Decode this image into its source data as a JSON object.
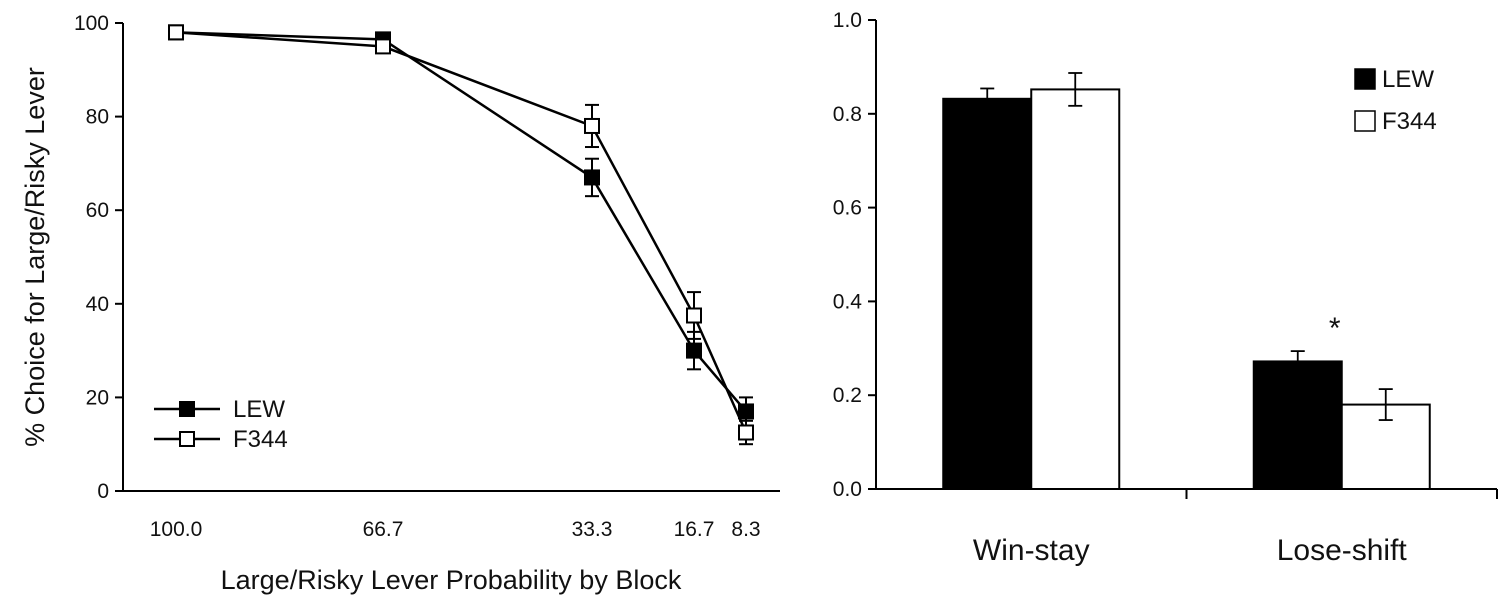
{
  "chart_data": [
    {
      "type": "line",
      "title": "",
      "xlabel": "Large/Risky Lever Probability by Block",
      "ylabel": "% Choice for Large/Risky Lever",
      "x": [
        100.0,
        66.7,
        33.3,
        16.7,
        8.3
      ],
      "x_tick_labels": [
        "100.0",
        "66.7",
        "33.3",
        "16.7",
        "8.3"
      ],
      "ylim": [
        0,
        100
      ],
      "y_ticks": [
        0,
        20,
        40,
        60,
        80,
        100
      ],
      "y_tick_labels": [
        "0",
        "20",
        "40",
        "60",
        "80",
        "100"
      ],
      "grid": false,
      "legend_position": "bottom-left",
      "series": [
        {
          "name": "LEW",
          "marker": "filled-square",
          "color": "#000000",
          "values": [
            98,
            96.5,
            67,
            30,
            17
          ],
          "errors": [
            0.8,
            1.0,
            4,
            4,
            3
          ]
        },
        {
          "name": "F344",
          "marker": "open-square",
          "color": "#000000",
          "values": [
            98,
            95,
            78,
            37.5,
            12.5
          ],
          "errors": [
            0.8,
            1.0,
            4.5,
            5,
            2.5
          ]
        }
      ]
    },
    {
      "type": "bar",
      "title": "",
      "xlabel": "",
      "ylabel": "",
      "categories": [
        "Win-stay",
        "Lose-shift"
      ],
      "ylim": [
        0,
        1.0
      ],
      "y_ticks": [
        0,
        0.2,
        0.4,
        0.6,
        0.8,
        1.0
      ],
      "y_tick_labels": [
        "0.0",
        "0.2",
        "0.4",
        "0.6",
        "0.8",
        "1.0"
      ],
      "grid": false,
      "legend_position": "top-right",
      "annotation": "*",
      "series": [
        {
          "name": "LEW",
          "color": "#000000",
          "values": [
            0.832,
            0.272
          ],
          "errors": [
            0.022,
            0.022
          ]
        },
        {
          "name": "F344",
          "color": "#ffffff",
          "values": [
            0.852,
            0.18
          ],
          "errors": [
            0.035,
            0.033
          ]
        }
      ]
    }
  ]
}
